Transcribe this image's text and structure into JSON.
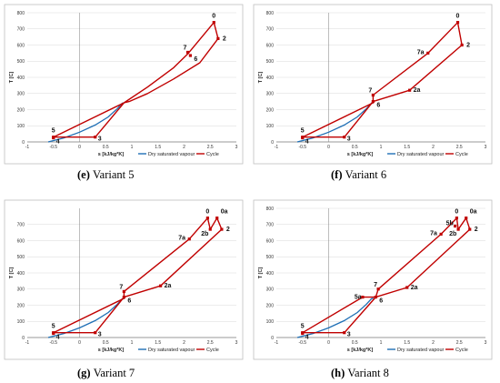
{
  "chart_data": [
    {
      "type": "line",
      "caption_letter": "(e)",
      "caption_text": "Variant 5",
      "xlabel": "s [kJ/kg*K]",
      "ylabel": "T [C]",
      "xlim": [
        -1,
        3
      ],
      "ylim": [
        0,
        800
      ],
      "x_ticks": [
        -1,
        -0.5,
        0,
        0.5,
        1,
        1.5,
        2,
        2.5,
        3
      ],
      "y_ticks": [
        0,
        100,
        200,
        300,
        400,
        500,
        600,
        700,
        800
      ],
      "grid": true,
      "legend": [
        "Dry saturated vapour",
        "Cycle"
      ],
      "legend_position": "bottom-right",
      "colors": {
        "saturation": "#1f6fb5",
        "cycle": "#c00000"
      },
      "saturation_curve": [
        [
          -0.6,
          0
        ],
        [
          -0.3,
          25
        ],
        [
          0.0,
          60
        ],
        [
          0.3,
          105
        ],
        [
          0.55,
          155
        ],
        [
          0.72,
          205
        ],
        [
          0.82,
          240
        ],
        [
          0.86,
          242
        ]
      ],
      "cycle_path": [
        [
          2.57,
          740
        ],
        [
          2.65,
          640
        ],
        [
          2.3,
          490
        ],
        [
          1.8,
          390
        ],
        [
          1.3,
          300
        ],
        [
          0.95,
          250
        ],
        [
          0.85,
          242
        ],
        [
          0.3,
          30
        ],
        [
          -0.5,
          30
        ],
        [
          0.85,
          242
        ],
        [
          1.3,
          340
        ],
        [
          1.8,
          460
        ],
        [
          2.07,
          545
        ],
        [
          2.57,
          740
        ]
      ],
      "points": [
        {
          "label": "0",
          "x": 2.57,
          "y": 740
        },
        {
          "label": "2",
          "x": 2.65,
          "y": 640
        },
        {
          "label": "7",
          "x": 2.07,
          "y": 555
        },
        {
          "label": "6",
          "x": 2.12,
          "y": 535
        },
        {
          "label": "5",
          "x": -0.5,
          "y": 30
        },
        {
          "label": "4",
          "x": -0.5,
          "y": 25
        },
        {
          "label": "3",
          "x": 0.3,
          "y": 30
        }
      ]
    },
    {
      "type": "line",
      "caption_letter": "(f)",
      "caption_text": "Variant 6",
      "xlabel": "s [kJ/kg*K]",
      "ylabel": "T [C]",
      "xlim": [
        -1,
        3
      ],
      "ylim": [
        0,
        800
      ],
      "x_ticks": [
        -1,
        -0.5,
        0,
        0.5,
        1,
        1.5,
        2,
        2.5,
        3
      ],
      "y_ticks": [
        0,
        100,
        200,
        300,
        400,
        500,
        600,
        700,
        800
      ],
      "grid": true,
      "legend": [
        "Dry saturated vapour",
        "Cycle"
      ],
      "legend_position": "bottom-right",
      "colors": {
        "saturation": "#1f6fb5",
        "cycle": "#c00000"
      },
      "saturation_curve": [
        [
          -0.6,
          0
        ],
        [
          -0.3,
          25
        ],
        [
          0.0,
          60
        ],
        [
          0.3,
          105
        ],
        [
          0.55,
          155
        ],
        [
          0.72,
          205
        ],
        [
          0.82,
          240
        ],
        [
          0.86,
          242
        ]
      ],
      "cycle_path": [
        [
          2.47,
          740
        ],
        [
          2.55,
          600
        ],
        [
          1.55,
          320
        ],
        [
          0.85,
          250
        ],
        [
          0.3,
          30
        ],
        [
          -0.5,
          30
        ],
        [
          0.85,
          242
        ],
        [
          0.85,
          290
        ],
        [
          1.9,
          550
        ],
        [
          2.47,
          740
        ]
      ],
      "points": [
        {
          "label": "0",
          "x": 2.47,
          "y": 740
        },
        {
          "label": "2",
          "x": 2.55,
          "y": 600
        },
        {
          "label": "7a",
          "x": 1.9,
          "y": 550
        },
        {
          "label": "7",
          "x": 0.85,
          "y": 290
        },
        {
          "label": "6",
          "x": 0.85,
          "y": 250
        },
        {
          "label": "2a",
          "x": 1.55,
          "y": 320
        },
        {
          "label": "5",
          "x": -0.5,
          "y": 30
        },
        {
          "label": "4",
          "x": -0.5,
          "y": 25
        },
        {
          "label": "3",
          "x": 0.3,
          "y": 30
        }
      ]
    },
    {
      "type": "line",
      "caption_letter": "(g)",
      "caption_text": "Variant 7",
      "xlabel": "s [kJ/kg*K]",
      "ylabel": "T [C]",
      "xlim": [
        -1,
        3
      ],
      "ylim": [
        0,
        800
      ],
      "x_ticks": [
        -1,
        -0.5,
        0,
        0.5,
        1,
        1.5,
        2,
        2.5,
        3
      ],
      "y_ticks": [
        0,
        100,
        200,
        300,
        400,
        500,
        600,
        700
      ],
      "grid": true,
      "legend": [
        "Dry saturated vapour",
        "Cycle"
      ],
      "legend_position": "bottom-right",
      "colors": {
        "saturation": "#1f6fb5",
        "cycle": "#c00000"
      },
      "saturation_curve": [
        [
          -0.6,
          0
        ],
        [
          -0.3,
          25
        ],
        [
          0.0,
          60
        ],
        [
          0.3,
          105
        ],
        [
          0.55,
          155
        ],
        [
          0.72,
          205
        ],
        [
          0.82,
          240
        ],
        [
          0.86,
          242
        ]
      ],
      "cycle_path": [
        [
          2.45,
          740
        ],
        [
          2.5,
          670
        ],
        [
          2.63,
          740
        ],
        [
          2.72,
          670
        ],
        [
          1.55,
          320
        ],
        [
          0.85,
          250
        ],
        [
          0.3,
          30
        ],
        [
          -0.5,
          30
        ],
        [
          0.85,
          242
        ],
        [
          0.85,
          285
        ],
        [
          2.1,
          610
        ],
        [
          2.45,
          740
        ]
      ],
      "points": [
        {
          "label": "0",
          "x": 2.45,
          "y": 740
        },
        {
          "label": "0a",
          "x": 2.63,
          "y": 740
        },
        {
          "label": "2b",
          "x": 2.5,
          "y": 670
        },
        {
          "label": "2",
          "x": 2.72,
          "y": 670
        },
        {
          "label": "7a",
          "x": 2.1,
          "y": 610
        },
        {
          "label": "7",
          "x": 0.85,
          "y": 285
        },
        {
          "label": "6",
          "x": 0.85,
          "y": 250
        },
        {
          "label": "2a",
          "x": 1.55,
          "y": 320
        },
        {
          "label": "5",
          "x": -0.5,
          "y": 30
        },
        {
          "label": "4",
          "x": -0.5,
          "y": 25
        },
        {
          "label": "3",
          "x": 0.3,
          "y": 30
        }
      ]
    },
    {
      "type": "line",
      "caption_letter": "(h)",
      "caption_text": "Variant 8",
      "xlabel": "s [kJ/kg*K]",
      "ylabel": "T [C]",
      "xlim": [
        -1,
        3
      ],
      "ylim": [
        0,
        800
      ],
      "x_ticks": [
        -1,
        -0.5,
        0,
        0.5,
        1,
        1.5,
        2,
        2.5,
        3
      ],
      "y_ticks": [
        0,
        100,
        200,
        300,
        400,
        500,
        600,
        700,
        800
      ],
      "grid": true,
      "legend": [
        "Dry saturated vapour",
        "Cycle"
      ],
      "legend_position": "bottom-right",
      "colors": {
        "saturation": "#1f6fb5",
        "cycle": "#c00000"
      },
      "saturation_curve": [
        [
          -0.6,
          0
        ],
        [
          -0.3,
          25
        ],
        [
          0.0,
          60
        ],
        [
          0.3,
          105
        ],
        [
          0.55,
          155
        ],
        [
          0.72,
          205
        ],
        [
          0.82,
          240
        ],
        [
          0.86,
          242
        ]
      ],
      "cycle_path": [
        [
          2.45,
          740
        ],
        [
          2.48,
          670
        ],
        [
          2.63,
          740
        ],
        [
          2.7,
          670
        ],
        [
          1.5,
          310
        ],
        [
          0.9,
          250
        ],
        [
          0.3,
          30
        ],
        [
          -0.5,
          30
        ],
        [
          0.65,
          250
        ],
        [
          0.9,
          250
        ],
        [
          0.95,
          300
        ],
        [
          2.15,
          640
        ],
        [
          2.45,
          740
        ]
      ],
      "points": [
        {
          "label": "0",
          "x": 2.45,
          "y": 740
        },
        {
          "label": "0a",
          "x": 2.63,
          "y": 740
        },
        {
          "label": "5b",
          "x": 2.42,
          "y": 690
        },
        {
          "label": "2b",
          "x": 2.48,
          "y": 670
        },
        {
          "label": "2",
          "x": 2.7,
          "y": 670
        },
        {
          "label": "7a",
          "x": 2.15,
          "y": 640
        },
        {
          "label": "7",
          "x": 0.95,
          "y": 300
        },
        {
          "label": "5a",
          "x": 0.65,
          "y": 250
        },
        {
          "label": "6",
          "x": 0.9,
          "y": 250
        },
        {
          "label": "2a",
          "x": 1.5,
          "y": 310
        },
        {
          "label": "5",
          "x": -0.5,
          "y": 30
        },
        {
          "label": "4",
          "x": -0.5,
          "y": 25
        },
        {
          "label": "3",
          "x": 0.3,
          "y": 30
        }
      ]
    }
  ]
}
